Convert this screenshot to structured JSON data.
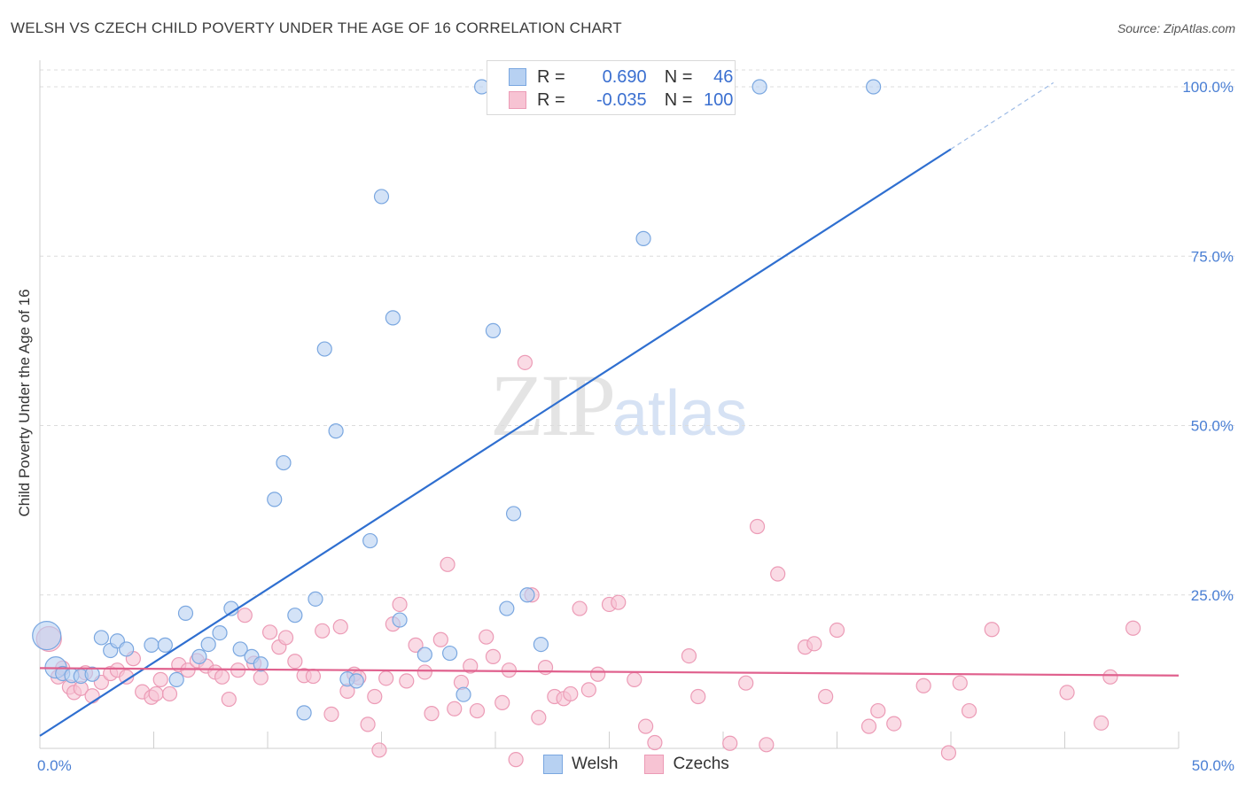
{
  "header": {
    "title": "WELSH VS CZECH CHILD POVERTY UNDER THE AGE OF 16 CORRELATION CHART",
    "source": "Source: ZipAtlas.com"
  },
  "watermark": {
    "zip": "ZIP",
    "atlas": "atlas"
  },
  "legend_box": {
    "welsh": {
      "r_label": "R =",
      "r_value": "0.690",
      "n_label": "N =",
      "n_value": "46"
    },
    "czechs": {
      "r_label": "R =",
      "r_value": "-0.035",
      "n_label": "N =",
      "n_value": "100"
    }
  },
  "bottom_legend": {
    "welsh": "Welsh",
    "czechs": "Czechs"
  },
  "colors": {
    "welsh_fill": "#b7d1f2",
    "welsh_stroke": "#7aa7e0",
    "welsh_line": "#2f6fd0",
    "czech_fill": "#f7c3d3",
    "czech_stroke": "#ec9bb6",
    "czech_line": "#e0608d",
    "tick": "#4a7fd4",
    "grid": "#dcdcdc"
  },
  "chart_data": {
    "type": "scatter",
    "title": "WELSH VS CZECH CHILD POVERTY UNDER THE AGE OF 16 CORRELATION CHART",
    "xlabel": "",
    "ylabel": "Child Poverty Under the Age of 16",
    "xlim": [
      0,
      50
    ],
    "ylim": [
      0,
      100
    ],
    "x_tick_labels": [
      "0.0%",
      "50.0%"
    ],
    "y_tick_labels": [
      "100.0%",
      "75.0%",
      "50.0%",
      "25.0%"
    ],
    "y_ticks": [
      100,
      75,
      50,
      25
    ],
    "grid": true,
    "series": [
      {
        "name": "Welsh",
        "r": 0.69,
        "n": 46,
        "trend": {
          "x": [
            0,
            40
          ],
          "y": [
            4.2,
            90.8
          ],
          "dashed_to": {
            "x": 44.5,
            "y": 100.6
          }
        },
        "points": [
          [
            0.3,
            19.0
          ],
          [
            0.7,
            14.3
          ],
          [
            1.0,
            13.4
          ],
          [
            1.4,
            13.1
          ],
          [
            1.8,
            13.0
          ],
          [
            2.3,
            13.3
          ],
          [
            2.7,
            18.7
          ],
          [
            3.1,
            16.8
          ],
          [
            3.4,
            18.2
          ],
          [
            3.8,
            17.0
          ],
          [
            4.9,
            17.6
          ],
          [
            5.5,
            17.6
          ],
          [
            6.0,
            12.5
          ],
          [
            6.4,
            22.3
          ],
          [
            7.0,
            15.9
          ],
          [
            7.4,
            17.7
          ],
          [
            7.9,
            19.4
          ],
          [
            8.4,
            23.0
          ],
          [
            8.8,
            17.0
          ],
          [
            9.3,
            15.9
          ],
          [
            9.7,
            14.8
          ],
          [
            10.3,
            39.1
          ],
          [
            10.7,
            44.5
          ],
          [
            11.2,
            22.0
          ],
          [
            11.6,
            7.6
          ],
          [
            12.1,
            24.4
          ],
          [
            12.5,
            61.3
          ],
          [
            13.0,
            49.2
          ],
          [
            13.5,
            12.6
          ],
          [
            13.9,
            12.3
          ],
          [
            14.5,
            33.0
          ],
          [
            15.0,
            83.8
          ],
          [
            15.5,
            65.9
          ],
          [
            15.8,
            21.3
          ],
          [
            16.9,
            16.2
          ],
          [
            18.0,
            16.4
          ],
          [
            18.6,
            10.3
          ],
          [
            19.4,
            100.0
          ],
          [
            19.9,
            64.0
          ],
          [
            20.5,
            23.0
          ],
          [
            20.8,
            37.0
          ],
          [
            21.4,
            25.0
          ],
          [
            22.0,
            17.7
          ],
          [
            26.5,
            77.6
          ],
          [
            31.6,
            100.0
          ],
          [
            36.6,
            100.0
          ]
        ]
      },
      {
        "name": "Czechs",
        "r": -0.035,
        "n": 100,
        "trend": {
          "x": [
            0,
            50
          ],
          "y": [
            14.2,
            13.1
          ]
        },
        "points": [
          [
            0.4,
            18.5
          ],
          [
            0.8,
            12.9
          ],
          [
            1.0,
            14.2
          ],
          [
            1.3,
            11.4
          ],
          [
            1.5,
            10.6
          ],
          [
            1.8,
            11.2
          ],
          [
            2.0,
            13.5
          ],
          [
            2.3,
            10.1
          ],
          [
            2.7,
            12.1
          ],
          [
            3.1,
            13.4
          ],
          [
            3.4,
            13.9
          ],
          [
            3.8,
            12.9
          ],
          [
            4.1,
            15.6
          ],
          [
            4.5,
            10.7
          ],
          [
            4.9,
            9.9
          ],
          [
            5.1,
            10.4
          ],
          [
            5.3,
            12.5
          ],
          [
            5.7,
            10.4
          ],
          [
            6.1,
            14.7
          ],
          [
            6.5,
            13.9
          ],
          [
            6.9,
            15.3
          ],
          [
            7.3,
            14.5
          ],
          [
            7.7,
            13.6
          ],
          [
            8.0,
            12.9
          ],
          [
            8.3,
            9.6
          ],
          [
            8.7,
            13.9
          ],
          [
            9.0,
            22.0
          ],
          [
            9.4,
            14.9
          ],
          [
            9.7,
            12.8
          ],
          [
            10.1,
            19.5
          ],
          [
            10.5,
            17.3
          ],
          [
            10.8,
            18.7
          ],
          [
            11.2,
            15.2
          ],
          [
            11.6,
            13.1
          ],
          [
            12.0,
            13.0
          ],
          [
            12.4,
            19.7
          ],
          [
            12.8,
            7.4
          ],
          [
            13.2,
            20.3
          ],
          [
            13.5,
            10.8
          ],
          [
            13.8,
            13.3
          ],
          [
            14.0,
            12.8
          ],
          [
            14.4,
            5.9
          ],
          [
            14.7,
            10.0
          ],
          [
            14.9,
            2.1
          ],
          [
            15.2,
            12.7
          ],
          [
            15.5,
            20.7
          ],
          [
            15.8,
            23.6
          ],
          [
            16.1,
            12.3
          ],
          [
            16.5,
            17.6
          ],
          [
            16.9,
            13.6
          ],
          [
            17.2,
            7.5
          ],
          [
            17.6,
            18.4
          ],
          [
            17.9,
            29.5
          ],
          [
            18.2,
            8.2
          ],
          [
            18.5,
            12.1
          ],
          [
            18.9,
            14.5
          ],
          [
            19.2,
            7.9
          ],
          [
            19.6,
            18.8
          ],
          [
            19.9,
            15.9
          ],
          [
            20.3,
            9.1
          ],
          [
            20.6,
            13.9
          ],
          [
            20.9,
            0.7
          ],
          [
            21.3,
            59.3
          ],
          [
            21.6,
            25.0
          ],
          [
            21.9,
            6.9
          ],
          [
            22.2,
            14.3
          ],
          [
            22.6,
            10.0
          ],
          [
            23.0,
            9.7
          ],
          [
            23.3,
            10.4
          ],
          [
            23.7,
            23.0
          ],
          [
            24.1,
            11.0
          ],
          [
            24.5,
            13.3
          ],
          [
            25.0,
            23.6
          ],
          [
            25.4,
            23.9
          ],
          [
            26.1,
            12.5
          ],
          [
            26.6,
            5.6
          ],
          [
            27.0,
            3.2
          ],
          [
            28.5,
            16.0
          ],
          [
            28.9,
            10.0
          ],
          [
            30.3,
            3.1
          ],
          [
            31.0,
            12.0
          ],
          [
            31.5,
            35.1
          ],
          [
            31.9,
            2.9
          ],
          [
            32.4,
            28.1
          ],
          [
            33.6,
            17.3
          ],
          [
            34.0,
            17.8
          ],
          [
            34.5,
            10.0
          ],
          [
            35.0,
            19.8
          ],
          [
            36.4,
            5.6
          ],
          [
            36.8,
            7.9
          ],
          [
            37.5,
            6.0
          ],
          [
            38.8,
            11.6
          ],
          [
            39.9,
            1.7
          ],
          [
            40.4,
            12.0
          ],
          [
            40.8,
            7.9
          ],
          [
            41.8,
            19.9
          ],
          [
            45.1,
            10.6
          ],
          [
            46.6,
            6.1
          ],
          [
            47.0,
            12.9
          ],
          [
            48.0,
            20.1
          ]
        ]
      }
    ]
  }
}
